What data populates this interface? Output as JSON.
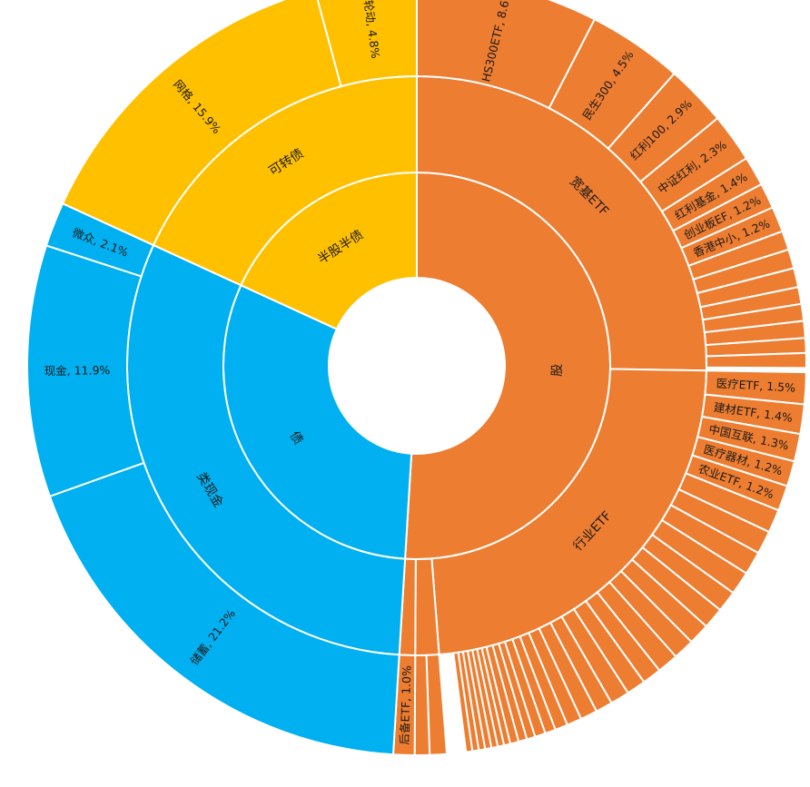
{
  "chart_data": {
    "type": "sunburst",
    "colors": {
      "股": "#ED7D31",
      "债": "#00B0F0",
      "半股半债": "#FFC000"
    },
    "rings": [
      [
        {
          "name": "股",
          "label": "股",
          "value": 58.1
        },
        {
          "name": "债",
          "label": "债",
          "value": 35.2
        },
        {
          "name": "半股半债",
          "label": "半股半债",
          "value": 20.7
        }
      ],
      [
        {
          "name": "宽基ETF",
          "label": "宽基ETF",
          "parent": "股",
          "value": 28.8
        },
        {
          "name": "行业ETF",
          "label": "行业ETF",
          "parent": "股",
          "value": 26.8
        },
        {
          "name": "股-其他",
          "label": "",
          "parent": "股",
          "value": 1.5
        },
        {
          "name": "后备ETF",
          "label": "",
          "parent": "股",
          "value": 1.0
        },
        {
          "name": "类现金",
          "label": "类现金",
          "parent": "债",
          "value": 35.2
        },
        {
          "name": "可转债",
          "label": "可转债",
          "parent": "半股半债",
          "value": 20.7
        }
      ],
      [
        {
          "name": "HS300ETF",
          "label": "HS300ETF, 8.6%",
          "parent": "宽基ETF",
          "value": 8.6
        },
        {
          "name": "民生300",
          "label": "民生300, 4.5%",
          "parent": "宽基ETF",
          "value": 4.5
        },
        {
          "name": "红利100",
          "label": "红利100, 2.9%",
          "parent": "宽基ETF",
          "value": 2.9
        },
        {
          "name": "中证红利",
          "label": "中证红利, 2.3%",
          "parent": "宽基ETF",
          "value": 2.3
        },
        {
          "name": "红利基金",
          "label": "红利基金, 1.4%",
          "parent": "宽基ETF",
          "value": 1.4
        },
        {
          "name": "创业板EF",
          "label": "创业板EF, 1.2%",
          "parent": "宽基ETF",
          "value": 1.2
        },
        {
          "name": "香港中小",
          "label": "香港中小, 1.2%",
          "parent": "宽基ETF",
          "value": 1.2
        },
        {
          "name": "宽基-1",
          "label": "",
          "parent": "宽基ETF",
          "value": 0.9
        },
        {
          "name": "宽基-2",
          "label": "",
          "parent": "宽基ETF",
          "value": 0.9
        },
        {
          "name": "宽基-3",
          "label": "",
          "parent": "宽基ETF",
          "value": 0.9
        },
        {
          "name": "宽基-4",
          "label": "",
          "parent": "宽基ETF",
          "value": 0.8
        },
        {
          "name": "宽基-5",
          "label": "",
          "parent": "宽基ETF",
          "value": 0.8
        },
        {
          "name": "宽基-6",
          "label": "",
          "parent": "宽基ETF",
          "value": 0.8
        },
        {
          "name": "宽基-7",
          "label": "",
          "parent": "宽基ETF",
          "value": 0.7
        },
        {
          "name": "宽基-8",
          "label": "",
          "parent": "宽基ETF",
          "value": 0.7
        },
        {
          "name": "医疗ETF",
          "label": "医疗ETF, 1.5%",
          "parent": "行业ETF",
          "value": 1.5
        },
        {
          "name": "建材ETF",
          "label": "建材ETF, 1.4%",
          "parent": "行业ETF",
          "value": 1.4
        },
        {
          "name": "中国互联",
          "label": "中国互联, 1.3%",
          "parent": "行业ETF",
          "value": 1.3
        },
        {
          "name": "医疗器材",
          "label": "医疗器材, 1.2%",
          "parent": "行业ETF",
          "value": 1.2
        },
        {
          "name": "农业ETF",
          "label": "农业ETF, 1.2%",
          "parent": "行业ETF",
          "value": 1.2
        },
        {
          "name": "行业-1",
          "label": "",
          "parent": "行业ETF",
          "value": 1.1
        },
        {
          "name": "行业-2",
          "label": "",
          "parent": "行业ETF",
          "value": 1.1
        },
        {
          "name": "行业-3",
          "label": "",
          "parent": "行业ETF",
          "value": 1.1
        },
        {
          "name": "行业-4",
          "label": "",
          "parent": "行业ETF",
          "value": 1.1
        },
        {
          "name": "行业-5",
          "label": "",
          "parent": "行业ETF",
          "value": 1.0
        },
        {
          "name": "行业-6",
          "label": "",
          "parent": "行业ETF",
          "value": 1.0
        },
        {
          "name": "行业-7",
          "label": "",
          "parent": "行业ETF",
          "value": 1.0
        },
        {
          "name": "行业-8",
          "label": "",
          "parent": "行业ETF",
          "value": 1.0
        },
        {
          "name": "行业-9",
          "label": "",
          "parent": "行业ETF",
          "value": 1.0
        },
        {
          "name": "行业-10",
          "label": "",
          "parent": "行业ETF",
          "value": 0.9
        },
        {
          "name": "行业-11",
          "label": "",
          "parent": "行业ETF",
          "value": 0.9
        },
        {
          "name": "行业-12",
          "label": "",
          "parent": "行业ETF",
          "value": 0.9
        },
        {
          "name": "行业-13",
          "label": "",
          "parent": "行业ETF",
          "value": 0.8
        },
        {
          "name": "行业-14",
          "label": "",
          "parent": "行业ETF",
          "value": 0.8
        },
        {
          "name": "行业-15",
          "label": "",
          "parent": "行业ETF",
          "value": 0.7
        },
        {
          "name": "行业-16",
          "label": "",
          "parent": "行业ETF",
          "value": 0.6
        },
        {
          "name": "行业-17",
          "label": "",
          "parent": "行业ETF",
          "value": 0.5
        },
        {
          "name": "行业-18",
          "label": "",
          "parent": "行业ETF",
          "value": 0.5
        },
        {
          "name": "行业-19",
          "label": "",
          "parent": "行业ETF",
          "value": 0.4
        },
        {
          "name": "行业-20",
          "label": "",
          "parent": "行业ETF",
          "value": 0.4
        },
        {
          "name": "行业-21",
          "label": "",
          "parent": "行业ETF",
          "value": 0.4
        },
        {
          "name": "行业-22",
          "label": "",
          "parent": "行业ETF",
          "value": 0.3
        },
        {
          "name": "行业-23",
          "label": "",
          "parent": "行业ETF",
          "value": 0.3
        },
        {
          "name": "行业-24",
          "label": "",
          "parent": "行业ETF",
          "value": 0.3
        },
        {
          "name": "行业-25",
          "label": "",
          "parent": "行业ETF",
          "value": 0.3
        },
        {
          "name": "行业-26",
          "label": "",
          "parent": "行业ETF",
          "value": 0.3
        },
        {
          "name": "行业-27",
          "label": "",
          "parent": "行业ETF",
          "value": 0.3
        },
        {
          "name": "行业-28",
          "label": "",
          "parent": "行业ETF",
          "value": 0.3
        },
        {
          "name": "股-其他-1",
          "label": "",
          "parent": "股-其他",
          "value": 0.8
        },
        {
          "name": "股-其他-2",
          "label": "",
          "parent": "股-其他",
          "value": 0.7
        },
        {
          "name": "后备ETF-叶",
          "label": "后备ETF, 1.0%",
          "parent": "后备ETF",
          "value": 1.0
        },
        {
          "name": "储蓄",
          "label": "储蓄, 21.2%",
          "parent": "类现金",
          "value": 21.2
        },
        {
          "name": "现金",
          "label": "现金, 11.9%",
          "parent": "类现金",
          "value": 11.9
        },
        {
          "name": "微众",
          "label": "微众, 2.1%",
          "parent": "类现金",
          "value": 2.1
        },
        {
          "name": "网格",
          "label": "网格, 15.9%",
          "parent": "可转债",
          "value": 15.9
        },
        {
          "name": "轮动",
          "label": "轮动, 4.8%",
          "parent": "可转债",
          "value": 4.8
        }
      ]
    ]
  }
}
